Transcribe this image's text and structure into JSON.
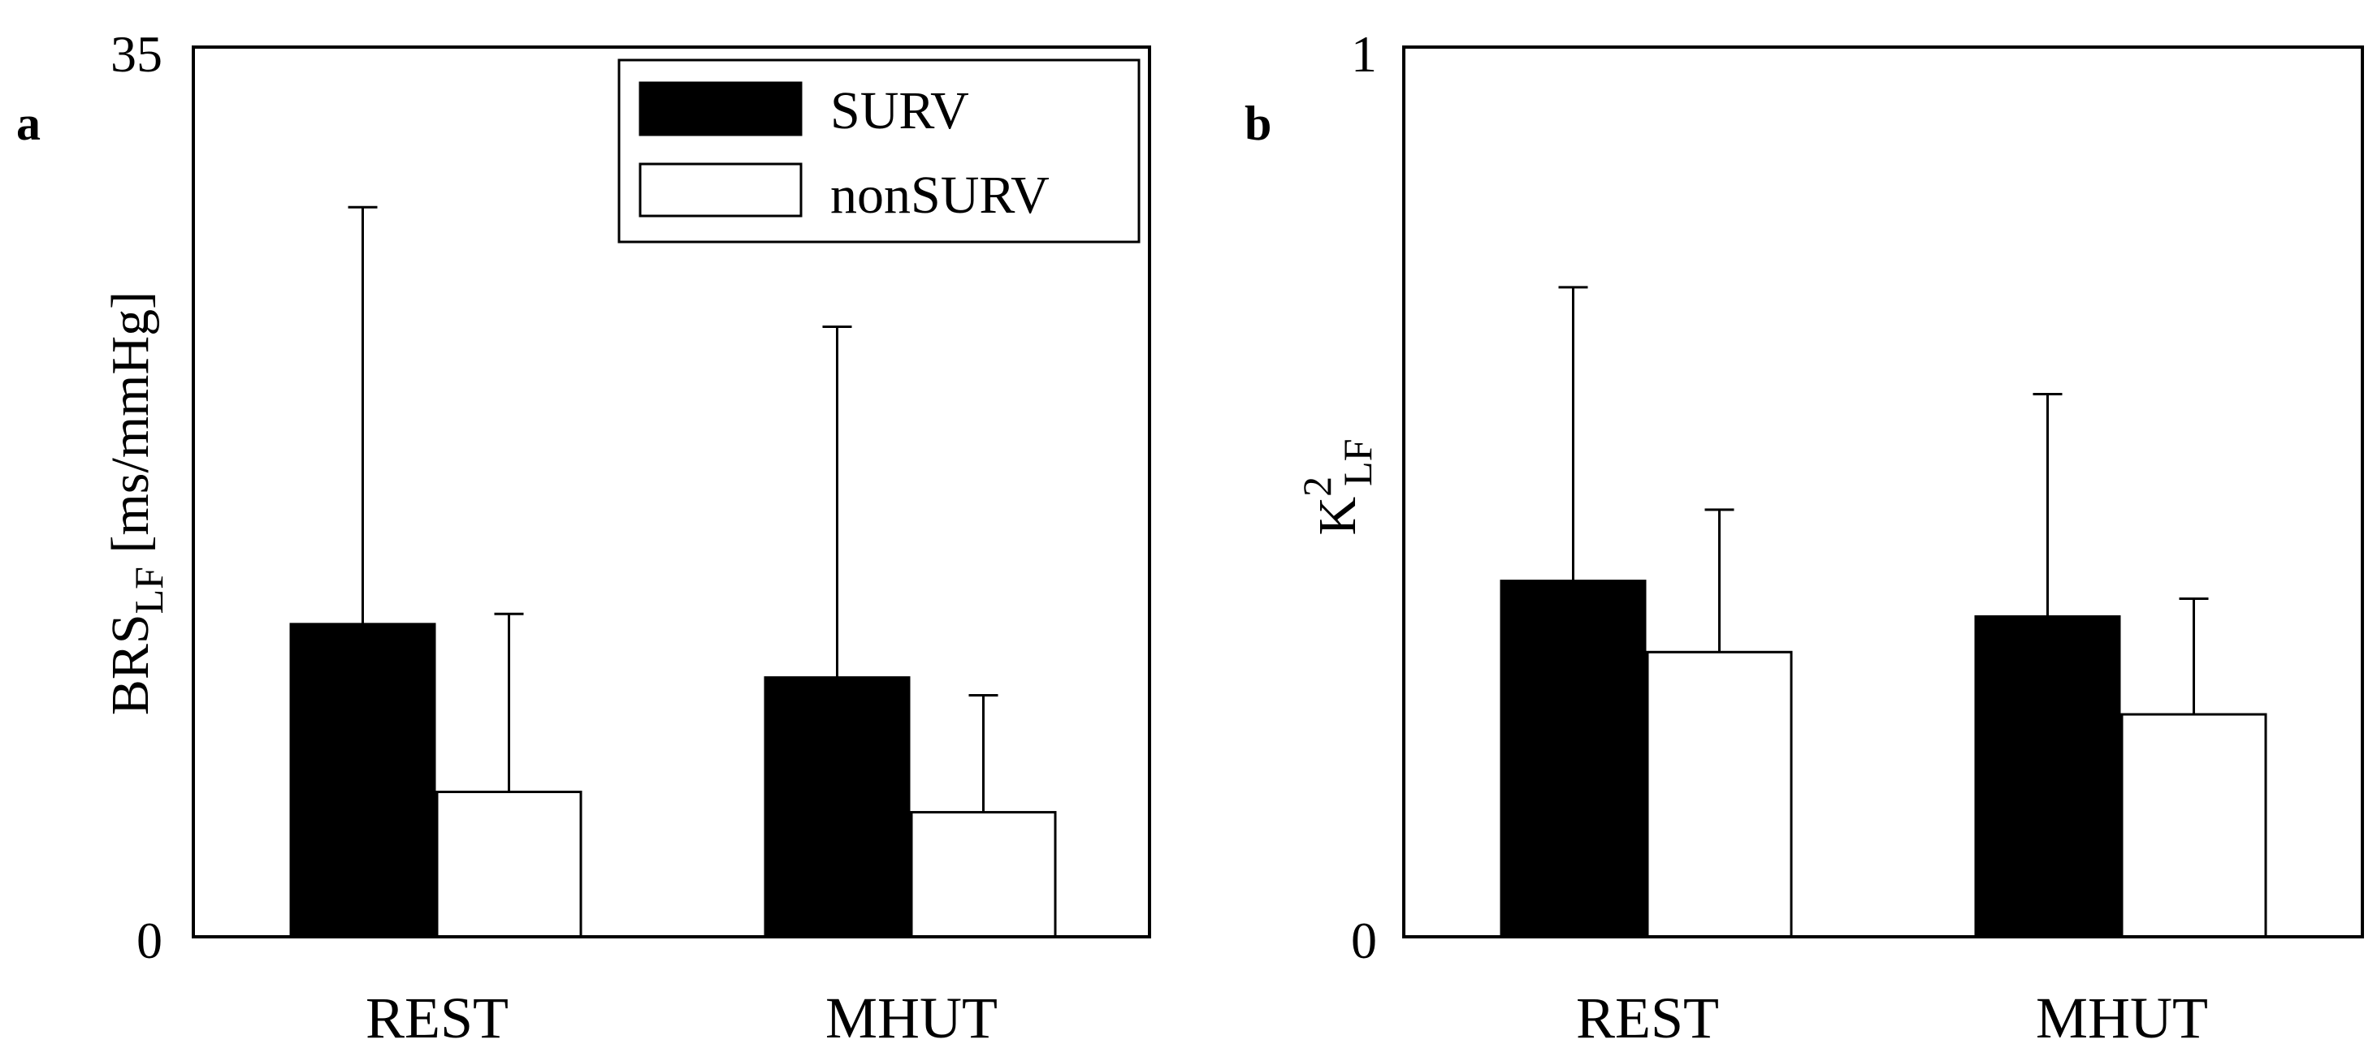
{
  "legend": {
    "surv_label": "SURV",
    "non_label": "nonSURV"
  },
  "colors": {
    "SURV": "#000000",
    "nonSURV": "#ffffff"
  },
  "chart_data": [
    {
      "panel": "a",
      "type": "bar",
      "categories": [
        "REST",
        "MHUT"
      ],
      "series": [
        {
          "name": "SURV",
          "values": [
            12.3,
            10.2
          ],
          "errors": [
            16.4,
            13.8
          ]
        },
        {
          "name": "nonSURV",
          "values": [
            5.7,
            4.9
          ],
          "errors": [
            7.0,
            4.6
          ]
        }
      ],
      "ylabel_main": "BRS",
      "ylabel_sub": "LF",
      "ylabel_unit": " [ms/mmHg]",
      "ylim": [
        0,
        35
      ],
      "yticks": [
        "0",
        "35"
      ],
      "grid": false,
      "legend_position": "top-right"
    },
    {
      "panel": "b",
      "type": "bar",
      "categories": [
        "REST",
        "MHUT"
      ],
      "series": [
        {
          "name": "SURV",
          "values": [
            0.4,
            0.36
          ],
          "errors": [
            0.33,
            0.25
          ]
        },
        {
          "name": "nonSURV",
          "values": [
            0.32,
            0.25
          ],
          "errors": [
            0.16,
            0.13
          ]
        }
      ],
      "ylabel_main": "K",
      "ylabel_sup": "2",
      "ylabel_sub": "LF",
      "ylim": [
        0,
        1
      ],
      "yticks": [
        "0",
        "1"
      ],
      "grid": false
    }
  ]
}
